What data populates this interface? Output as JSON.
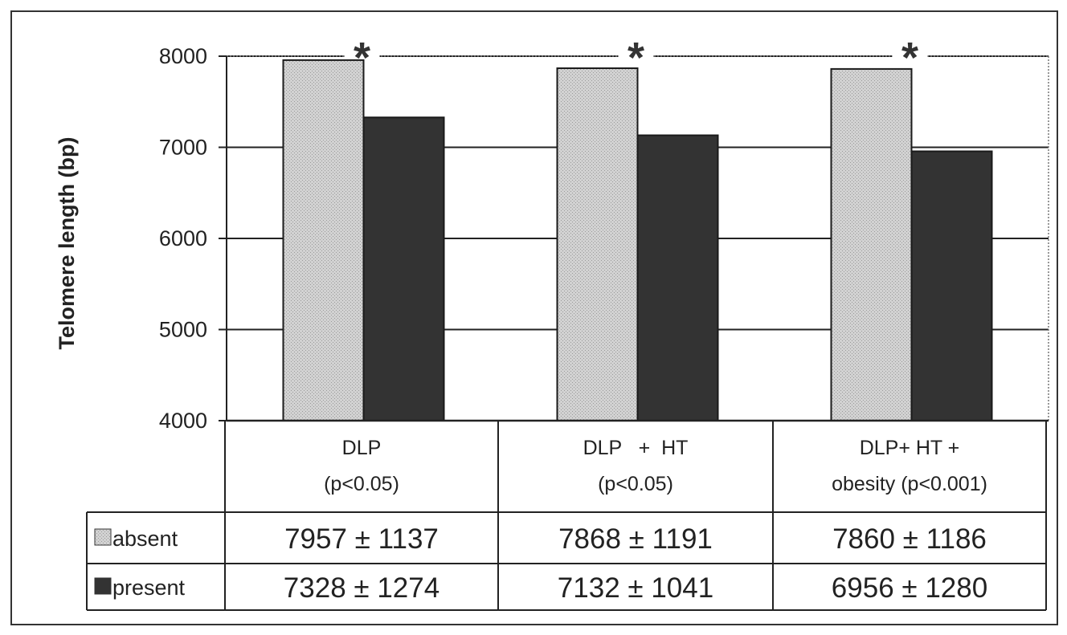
{
  "chart_data": {
    "type": "bar",
    "title": "",
    "xlabel": "",
    "ylabel": "Telomere length (bp)",
    "ylim": [
      4000,
      8000
    ],
    "yticks": [
      4000,
      5000,
      6000,
      7000,
      8000
    ],
    "grid": true,
    "categories": [
      [
        "DLP",
        "(p<0.05)"
      ],
      [
        "DLP   +  HT",
        "(p<0.05)"
      ],
      [
        "DLP+ HT +",
        "obesity (p<0.001)"
      ]
    ],
    "significance_marker": "*",
    "series": [
      {
        "name": "absent",
        "values": [
          7957,
          7868,
          7860
        ],
        "sd": [
          1137,
          1191,
          1186
        ],
        "color": "#c4c4c4"
      },
      {
        "name": "present",
        "values": [
          7328,
          7132,
          6956
        ],
        "sd": [
          1274,
          1041,
          1280
        ],
        "color": "#333333"
      }
    ],
    "table": {
      "rows": [
        {
          "label": "absent",
          "cells": [
            "7957 ± 1137",
            "7868 ± 1191",
            "7860 ± 1186"
          ]
        },
        {
          "label": "present",
          "cells": [
            "7328 ± 1274",
            "7132 ± 1041",
            "6956 ± 1280"
          ]
        }
      ]
    }
  }
}
